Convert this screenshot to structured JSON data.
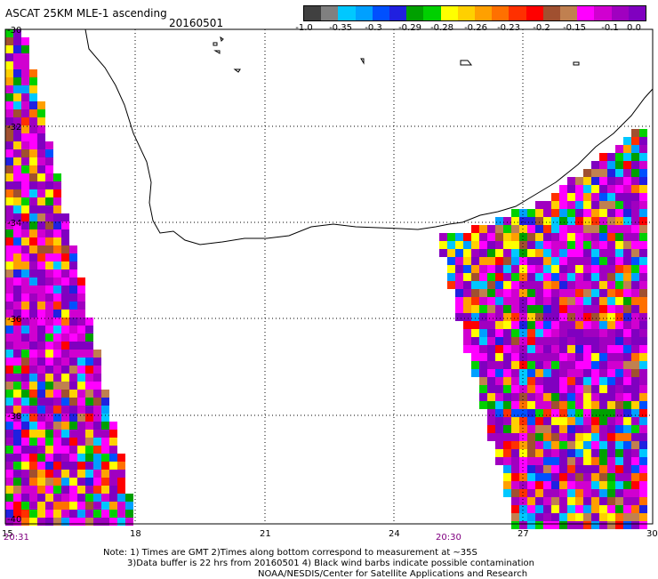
{
  "header": {
    "title": "ASCAT 25KM MLE-1 ascending",
    "date": "20160501"
  },
  "colorbar": {
    "colors": [
      "#404040",
      "#808080",
      "#00c8ff",
      "#00a0ff",
      "#0050ff",
      "#2020e0",
      "#00a000",
      "#00d000",
      "#ffff00",
      "#ffd000",
      "#ffa000",
      "#ff7000",
      "#ff3000",
      "#ff0000",
      "#a05030",
      "#c08050",
      "#ff00ff",
      "#d000d0",
      "#a000c0",
      "#8000c0"
    ],
    "labels": [
      "-1.0",
      "-0.35",
      "-0.3",
      "-0.29",
      "-0.28",
      "-0.26",
      "-0.23",
      "-0.2",
      "-0.15",
      "-0.1",
      "0.0"
    ]
  },
  "axes": {
    "lat_labels": [
      "-30",
      "-32",
      "-34",
      "-36",
      "-38",
      "-40"
    ],
    "lon_labels": [
      "15",
      "18",
      "21",
      "24",
      "27",
      "30"
    ]
  },
  "times": {
    "left": "20:31",
    "right": "20:30"
  },
  "notes": {
    "line1": "Note: 1) Times are GMT 2)Times along bottom correspond to measurement at ~35S",
    "line2": "3)Data buffer is 22 hrs from 20160501 4) Black wind barbs indicate possible contamination",
    "line3": "NOAA/NESDIS/Center for Satellite Applications and Research"
  }
}
